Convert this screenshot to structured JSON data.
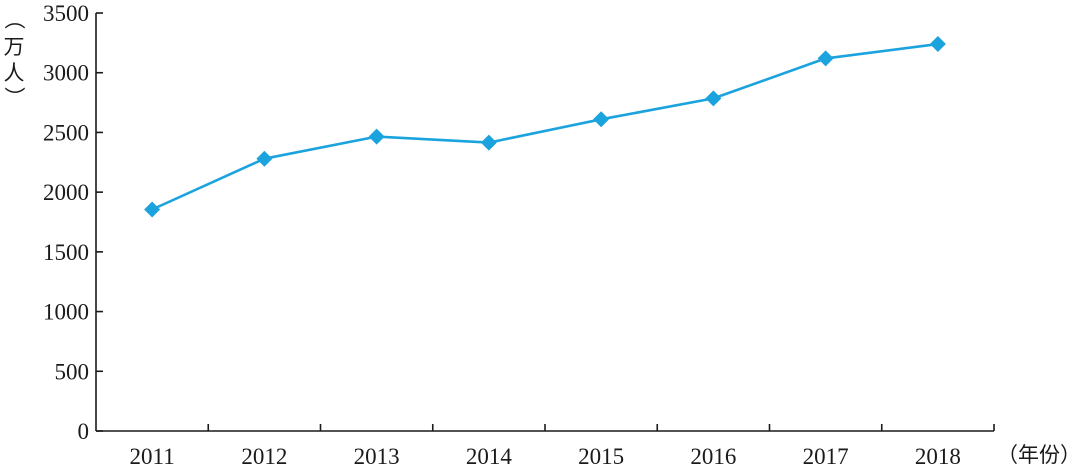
{
  "chart_data": {
    "type": "line",
    "title": "",
    "x": [
      "2011",
      "2012",
      "2013",
      "2014",
      "2015",
      "2016",
      "2017",
      "2018"
    ],
    "series": [
      {
        "values": [
          1855,
          2280,
          2465,
          2415,
          2610,
          2785,
          3120,
          3240
        ],
        "marker": "diamond",
        "color": "#1ba3de"
      }
    ],
    "xlabel": "（年份）",
    "ylabel": "（万人）",
    "ylabel_chars": [
      "（",
      "万",
      "人",
      "）"
    ],
    "ylim": [
      0,
      3500
    ],
    "yticks": [
      0,
      500,
      1000,
      1500,
      2000,
      2500,
      3000,
      3500
    ],
    "grid": false,
    "legend": "none",
    "axis_color": "#1a1a1a"
  }
}
